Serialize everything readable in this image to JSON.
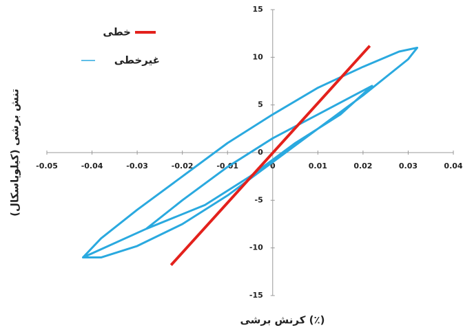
{
  "chart_data": {
    "type": "line",
    "x_label": "کرنش برشی (٪)",
    "y_label": "تنش برشی (کیلوپاسکال)",
    "xlim": [
      -0.05,
      0.04
    ],
    "xticks": [
      -0.05,
      -0.04,
      -0.03,
      -0.02,
      -0.01,
      0,
      0.01,
      0.02,
      0.03,
      0.04
    ],
    "ylim": [
      -15,
      15
    ],
    "yticks": [
      -15,
      -10,
      -5,
      0,
      5,
      10,
      15
    ],
    "series": [
      {
        "name": "خطی",
        "color": "#e3211c",
        "x": [
          -0.0225,
          0.0215
        ],
        "values": [
          -11.8,
          11.2
        ]
      },
      {
        "name": "غیرخطی",
        "color": "#2aa9df",
        "x": [
          -0.042,
          -0.038,
          -0.03,
          -0.02,
          -0.01,
          0,
          0.01,
          0.02,
          0.028,
          0.032,
          0.03,
          0.02,
          0.01,
          0,
          -0.01,
          -0.02,
          -0.03,
          -0.038,
          -0.042,
          -0.028,
          -0.02,
          -0.01,
          0,
          0.01,
          0.022,
          0.015,
          0.005,
          -0.005,
          -0.015,
          -0.028
        ],
        "values": [
          -11,
          -9,
          -6,
          -2.5,
          1,
          4,
          6.8,
          9,
          10.6,
          11,
          9.8,
          6,
          2.5,
          -1,
          -4.5,
          -7.5,
          -9.8,
          -11,
          -11,
          -8,
          -5,
          -1.5,
          1.5,
          4,
          7,
          4,
          1,
          -2.5,
          -5.5,
          -8
        ]
      }
    ]
  }
}
